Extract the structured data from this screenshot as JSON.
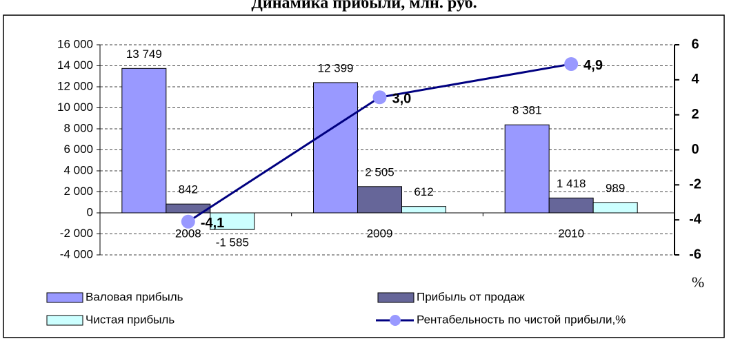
{
  "chart_data": {
    "type": "bar",
    "title": "Динамика прибыли, млн. руб.",
    "categories": [
      "2008",
      "2009",
      "2010"
    ],
    "series": [
      {
        "name": "Валовая прибыль",
        "color": "#9999ff",
        "values": [
          13749,
          12399,
          8381
        ],
        "value_labels": [
          "13 749",
          "12 399",
          "8 381"
        ]
      },
      {
        "name": "Прибыль от продаж",
        "color": "#666699",
        "values": [
          842,
          2505,
          1418
        ],
        "value_labels": [
          "842",
          "2 505",
          "1 418"
        ]
      },
      {
        "name": "Чистая прибыль",
        "color": "#ccffff",
        "values": [
          -1585,
          612,
          989
        ],
        "value_labels": [
          "-1 585",
          "612",
          "989"
        ]
      },
      {
        "name": "Рентабельность по чистой прибыли,%",
        "type": "line",
        "axis": "y2",
        "color": "#000080",
        "marker_color": "#9999ff",
        "values": [
          -4.1,
          3.0,
          4.9
        ],
        "value_labels": [
          "-4,1",
          "3,0",
          "4,9"
        ]
      }
    ],
    "ylim": [
      -4000,
      16000
    ],
    "yticks": [
      {
        "value": -4000,
        "label": "-4 000"
      },
      {
        "value": -2000,
        "label": "-2 000"
      },
      0,
      {
        "value": 2000,
        "label": "2 000"
      },
      {
        "value": 4000,
        "label": "4 000"
      },
      {
        "value": 6000,
        "label": "6 000"
      },
      {
        "value": 8000,
        "label": "8 000"
      },
      {
        "value": 10000,
        "label": "10 000"
      },
      {
        "value": 12000,
        "label": "12 000"
      },
      {
        "value": 14000,
        "label": "14 000"
      },
      {
        "value": 16000,
        "label": "16 000"
      }
    ],
    "y2lim": [
      -6,
      6
    ],
    "y2ticks": [
      -6,
      -4,
      -2,
      0,
      2,
      4,
      6
    ],
    "y2label": "%",
    "grid": true
  }
}
